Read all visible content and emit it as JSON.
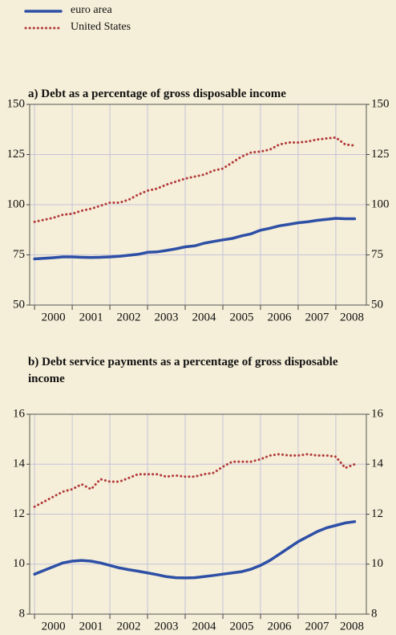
{
  "chart_data": [
    {
      "type": "line",
      "title": "a) Debt as a percentage of gross disposable income",
      "x": [
        2000,
        2000.25,
        2000.5,
        2000.75,
        2001,
        2001.25,
        2001.5,
        2001.75,
        2002,
        2002.25,
        2002.5,
        2002.75,
        2003,
        2003.25,
        2003.5,
        2003.75,
        2004,
        2004.25,
        2004.5,
        2004.75,
        2005,
        2005.25,
        2005.5,
        2005.75,
        2006,
        2006.25,
        2006.5,
        2006.75,
        2007,
        2007.25,
        2007.5,
        2007.75,
        2008,
        2008.25,
        2008.5
      ],
      "series": [
        {
          "name": "euro area",
          "color": "#2d4fa6",
          "style": "solid",
          "values": [
            73,
            73.3,
            73.6,
            74,
            74,
            73.8,
            73.7,
            73.8,
            74,
            74.3,
            74.8,
            75.3,
            76.3,
            76.5,
            77.2,
            78,
            79,
            79.5,
            80.8,
            81.7,
            82.5,
            83.2,
            84.5,
            85.5,
            87.3,
            88.3,
            89.5,
            90.2,
            91,
            91.5,
            92.2,
            92.7,
            93.2,
            93,
            93
          ]
        },
        {
          "name": "United States",
          "color": "#b23a3a",
          "style": "dotted",
          "values": [
            91.5,
            92.5,
            93.5,
            95,
            95.5,
            97,
            98,
            99.5,
            101,
            101,
            102.5,
            105,
            107,
            108,
            110,
            111.5,
            113,
            114,
            115,
            117,
            118,
            121,
            124,
            126,
            126.5,
            127.5,
            130,
            131,
            131,
            131.5,
            132.5,
            133,
            133.5,
            130,
            129.5
          ]
        }
      ],
      "xlim": [
        1999.87,
        2008.81
      ],
      "xticks": [
        2000,
        2001,
        2002,
        2003,
        2004,
        2005,
        2006,
        2007,
        2008
      ],
      "ylim": [
        50,
        150
      ],
      "yticks": [
        50,
        75,
        100,
        125,
        150
      ],
      "grid": true,
      "legend": true
    },
    {
      "type": "line",
      "title": "b) Debt service payments as a percentage of gross disposable income",
      "x": [
        2000,
        2000.25,
        2000.5,
        2000.75,
        2001,
        2001.25,
        2001.5,
        2001.75,
        2002,
        2002.25,
        2002.5,
        2002.75,
        2003,
        2003.25,
        2003.5,
        2003.75,
        2004,
        2004.25,
        2004.5,
        2004.75,
        2005,
        2005.25,
        2005.5,
        2005.75,
        2006,
        2006.25,
        2006.5,
        2006.75,
        2007,
        2007.25,
        2007.5,
        2007.75,
        2008,
        2008.25,
        2008.5
      ],
      "series": [
        {
          "color": "#2d4fa6",
          "style": "solid",
          "values": [
            9.6,
            9.75,
            9.9,
            10.05,
            10.12,
            10.15,
            10.12,
            10.05,
            9.95,
            9.85,
            9.78,
            9.72,
            9.65,
            9.58,
            9.5,
            9.46,
            9.45,
            9.46,
            9.5,
            9.55,
            9.6,
            9.65,
            9.7,
            9.8,
            9.95,
            10.15,
            10.4,
            10.65,
            10.9,
            11.1,
            11.3,
            11.45,
            11.55,
            11.65,
            11.7
          ]
        },
        {
          "color": "#b23a3a",
          "style": "dotted",
          "values": [
            12.3,
            12.5,
            12.7,
            12.9,
            13.0,
            13.2,
            13.0,
            13.4,
            13.3,
            13.3,
            13.45,
            13.6,
            13.6,
            13.6,
            13.5,
            13.55,
            13.5,
            13.5,
            13.6,
            13.65,
            13.9,
            14.1,
            14.1,
            14.1,
            14.2,
            14.35,
            14.4,
            14.35,
            14.35,
            14.4,
            14.35,
            14.35,
            14.3,
            13.85,
            14.0
          ]
        }
      ],
      "xlim": [
        1999.87,
        2008.81
      ],
      "xticks": [
        2000,
        2001,
        2002,
        2003,
        2004,
        2005,
        2006,
        2007,
        2008
      ],
      "ylim": [
        8,
        16
      ],
      "yticks": [
        8,
        10,
        12,
        14,
        16
      ],
      "grid": true
    }
  ]
}
